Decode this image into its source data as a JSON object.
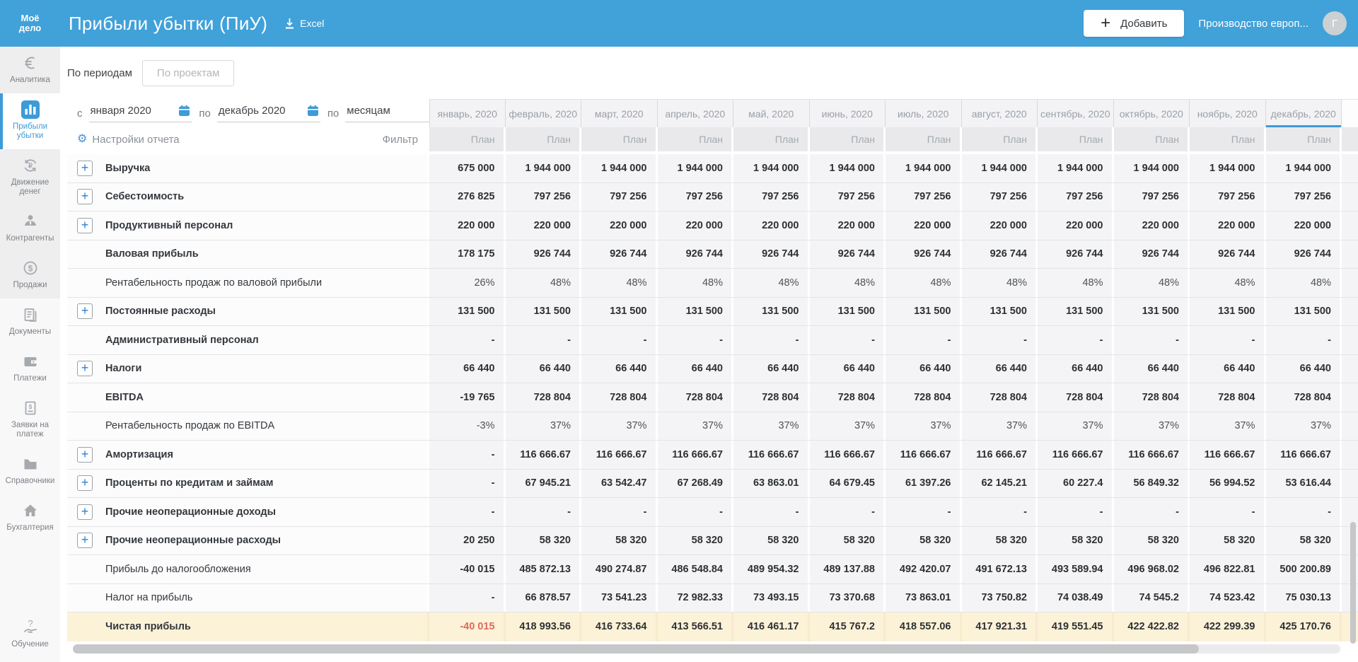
{
  "app": {
    "logo_line1": "Моё",
    "logo_line2": "дело",
    "title": "Прибыли убытки (ПиУ)",
    "excel_label": "Excel",
    "add_button_label": "Добавить",
    "company": "Производство европ...",
    "avatar_letter": "Г"
  },
  "sidebar": {
    "items": [
      {
        "id": "analytics",
        "label": "Аналитика",
        "section": "top",
        "active": false
      },
      {
        "id": "profit-loss",
        "label": "Прибыли убытки",
        "section": "top",
        "active": true
      },
      {
        "id": "cash-flow",
        "label": "Движение денег",
        "section": "top",
        "active": false
      },
      {
        "id": "contractors",
        "label": "Контрагенты",
        "section": "top",
        "active": false
      },
      {
        "id": "sales",
        "label": "Продажи",
        "section": "top",
        "active": false
      },
      {
        "id": "documents",
        "label": "Документы",
        "section": "bottom",
        "active": false
      },
      {
        "id": "payments",
        "label": "Платежи",
        "section": "bottom",
        "active": false
      },
      {
        "id": "payment-requests",
        "label": "Заявки на платеж",
        "section": "bottom",
        "active": false
      },
      {
        "id": "references",
        "label": "Справочники",
        "section": "bottom",
        "active": false
      },
      {
        "id": "accounting",
        "label": "Бухгалтерия",
        "section": "bottom",
        "active": false
      }
    ],
    "footer_item": {
      "id": "education",
      "label": "Обучение"
    }
  },
  "tabs": [
    {
      "label": "По периодам",
      "active": true
    },
    {
      "label": "По проектам",
      "active": false
    }
  ],
  "filters": {
    "from_label": "с",
    "from_value": "января 2020",
    "to_label": "по",
    "to_value": "декабрь 2020",
    "group_label": "по",
    "group_value": "месяцам"
  },
  "toolbar": {
    "settings_label": "Настройки отчета",
    "filter_label": "Фильтр"
  },
  "table": {
    "plan_label": "План",
    "selected_month_index": 11,
    "months": [
      "январь, 2020",
      "февраль, 2020",
      "март, 2020",
      "апрель, 2020",
      "май, 2020",
      "июнь, 2020",
      "июль, 2020",
      "август, 2020",
      "сентябрь, 2020",
      "октябрь, 2020",
      "ноябрь, 2020",
      "декабрь, 2020"
    ],
    "rows": [
      {
        "id": "revenue",
        "label": "Выручка",
        "expandable": true,
        "bold": true,
        "values": [
          "675 000",
          "1 944 000",
          "1 944 000",
          "1 944 000",
          "1 944 000",
          "1 944 000",
          "1 944 000",
          "1 944 000",
          "1 944 000",
          "1 944 000",
          "1 944 000",
          "1 944 000"
        ]
      },
      {
        "id": "cost",
        "label": "Себестоимость",
        "expandable": true,
        "bold": true,
        "values": [
          "276 825",
          "797 256",
          "797 256",
          "797 256",
          "797 256",
          "797 256",
          "797 256",
          "797 256",
          "797 256",
          "797 256",
          "797 256",
          "797 256"
        ]
      },
      {
        "id": "productive-staff",
        "label": "Продуктивный персонал",
        "expandable": true,
        "bold": true,
        "values": [
          "220 000",
          "220 000",
          "220 000",
          "220 000",
          "220 000",
          "220 000",
          "220 000",
          "220 000",
          "220 000",
          "220 000",
          "220 000",
          "220 000"
        ]
      },
      {
        "id": "gross-profit",
        "label": "Валовая прибыль",
        "expandable": false,
        "bold": true,
        "values": [
          "178 175",
          "926 744",
          "926 744",
          "926 744",
          "926 744",
          "926 744",
          "926 744",
          "926 744",
          "926 744",
          "926 744",
          "926 744",
          "926 744"
        ]
      },
      {
        "id": "gross-margin",
        "label": "Рентабельность продаж по валовой прибыли",
        "expandable": false,
        "bold": false,
        "percent": true,
        "values": [
          "26%",
          "48%",
          "48%",
          "48%",
          "48%",
          "48%",
          "48%",
          "48%",
          "48%",
          "48%",
          "48%",
          "48%"
        ]
      },
      {
        "id": "fixed-costs",
        "label": "Постоянные расходы",
        "expandable": true,
        "bold": true,
        "values": [
          "131 500",
          "131 500",
          "131 500",
          "131 500",
          "131 500",
          "131 500",
          "131 500",
          "131 500",
          "131 500",
          "131 500",
          "131 500",
          "131 500"
        ]
      },
      {
        "id": "admin-staff",
        "label": "Административный персонал",
        "expandable": false,
        "bold": true,
        "values": [
          "-",
          "-",
          "-",
          "-",
          "-",
          "-",
          "-",
          "-",
          "-",
          "-",
          "-",
          "-"
        ]
      },
      {
        "id": "taxes",
        "label": "Налоги",
        "expandable": true,
        "bold": true,
        "values": [
          "66 440",
          "66 440",
          "66 440",
          "66 440",
          "66 440",
          "66 440",
          "66 440",
          "66 440",
          "66 440",
          "66 440",
          "66 440",
          "66 440"
        ]
      },
      {
        "id": "ebitda",
        "label": "EBITDA",
        "expandable": false,
        "bold": true,
        "values": [
          "-19 765",
          "728 804",
          "728 804",
          "728 804",
          "728 804",
          "728 804",
          "728 804",
          "728 804",
          "728 804",
          "728 804",
          "728 804",
          "728 804"
        ]
      },
      {
        "id": "ebitda-margin",
        "label": "Рентабельность продаж по EBITDA",
        "expandable": false,
        "bold": false,
        "percent": true,
        "values": [
          "-3%",
          "37%",
          "37%",
          "37%",
          "37%",
          "37%",
          "37%",
          "37%",
          "37%",
          "37%",
          "37%",
          "37%"
        ]
      },
      {
        "id": "amortization",
        "label": "Амортизация",
        "expandable": true,
        "bold": true,
        "values": [
          "-",
          "116 666.67",
          "116 666.67",
          "116 666.67",
          "116 666.67",
          "116 666.67",
          "116 666.67",
          "116 666.67",
          "116 666.67",
          "116 666.67",
          "116 666.67",
          "116 666.67"
        ]
      },
      {
        "id": "loan-interest",
        "label": "Проценты по кредитам и займам",
        "expandable": true,
        "bold": true,
        "values": [
          "-",
          "67 945.21",
          "63 542.47",
          "67 268.49",
          "63 863.01",
          "64 679.45",
          "61 397.26",
          "62 145.21",
          "60 227.4",
          "56 849.32",
          "56 994.52",
          "53 616.44"
        ]
      },
      {
        "id": "other-nonop-income",
        "label": "Прочие неоперационные доходы",
        "expandable": true,
        "bold": true,
        "values": [
          "-",
          "-",
          "-",
          "-",
          "-",
          "-",
          "-",
          "-",
          "-",
          "-",
          "-",
          "-"
        ]
      },
      {
        "id": "other-nonop-expenses",
        "label": "Прочие неоперационные расходы",
        "expandable": true,
        "bold": true,
        "values": [
          "20 250",
          "58 320",
          "58 320",
          "58 320",
          "58 320",
          "58 320",
          "58 320",
          "58 320",
          "58 320",
          "58 320",
          "58 320",
          "58 320"
        ]
      },
      {
        "id": "profit-before-tax",
        "label": "Прибыль до налогообложения",
        "expandable": false,
        "bold": false,
        "values": [
          "-40 015",
          "485 872.13",
          "490 274.87",
          "486 548.84",
          "489 954.32",
          "489 137.88",
          "492 420.07",
          "491 672.13",
          "493 589.94",
          "496 968.02",
          "496 822.81",
          "500 200.89"
        ]
      },
      {
        "id": "income-tax",
        "label": "Налог на прибыль",
        "expandable": false,
        "bold": false,
        "values": [
          "-",
          "66 878.57",
          "73 541.23",
          "72 982.33",
          "73 493.15",
          "73 370.68",
          "73 863.01",
          "73 750.82",
          "74 038.49",
          "74 545.2",
          "74 523.42",
          "75 030.13"
        ]
      },
      {
        "id": "net-profit",
        "label": "Чистая прибыль",
        "expandable": false,
        "bold": true,
        "highlight": true,
        "values": [
          "-40 015",
          "418 993.56",
          "416 733.64",
          "413 566.51",
          "416 461.17",
          "415 767.2",
          "418 557.06",
          "417 921.31",
          "419 551.45",
          "422 422.82",
          "422 299.39",
          "425 170.76"
        ]
      }
    ]
  },
  "colors": {
    "header_bg": "#41a1d9",
    "accent_blue": "#3d9bd8",
    "plan_header_bg": "#e9e9eb",
    "cell_bg": "#f4f4f6",
    "highlight_row_bg": "#fcf2d8",
    "negative_red": "#e0695e"
  }
}
